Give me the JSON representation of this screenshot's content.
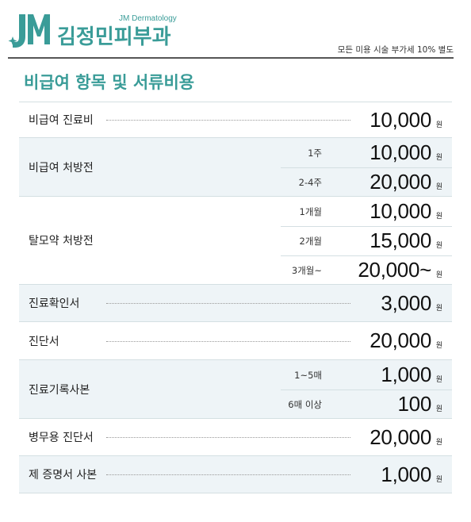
{
  "header": {
    "logo_mark": "JM",
    "logo_subtitle": "JM Dermatology",
    "clinic_name": "김정민피부과",
    "vat_note": "모든 미용 시술 부가세 10% 별도",
    "brand_color": "#3a9c98"
  },
  "page_title": "비급여 항목 및 서류비용",
  "currency_unit": "원",
  "rows": [
    {
      "label": "비급여 진료비",
      "price": "10,000"
    },
    {
      "label": "비급여 처방전",
      "sub": [
        {
          "label": "1주",
          "price": "10,000"
        },
        {
          "label": "2-4주",
          "price": "20,000"
        }
      ]
    },
    {
      "label": "탈모약 처방전",
      "sub": [
        {
          "label": "1개월",
          "price": "10,000"
        },
        {
          "label": "2개월",
          "price": "15,000"
        },
        {
          "label": "3개월~",
          "price": "20,000~"
        }
      ]
    },
    {
      "label": "진료확인서",
      "price": "3,000"
    },
    {
      "label": "진단서",
      "price": "20,000"
    },
    {
      "label": "진료기록사본",
      "sub": [
        {
          "label": "1~5매",
          "price": "1,000"
        },
        {
          "label": "6매 이상",
          "price": "100"
        }
      ]
    },
    {
      "label": "병무용 진단서",
      "price": "20,000"
    },
    {
      "label": "제 증명서 사본",
      "price": "1,000"
    }
  ]
}
